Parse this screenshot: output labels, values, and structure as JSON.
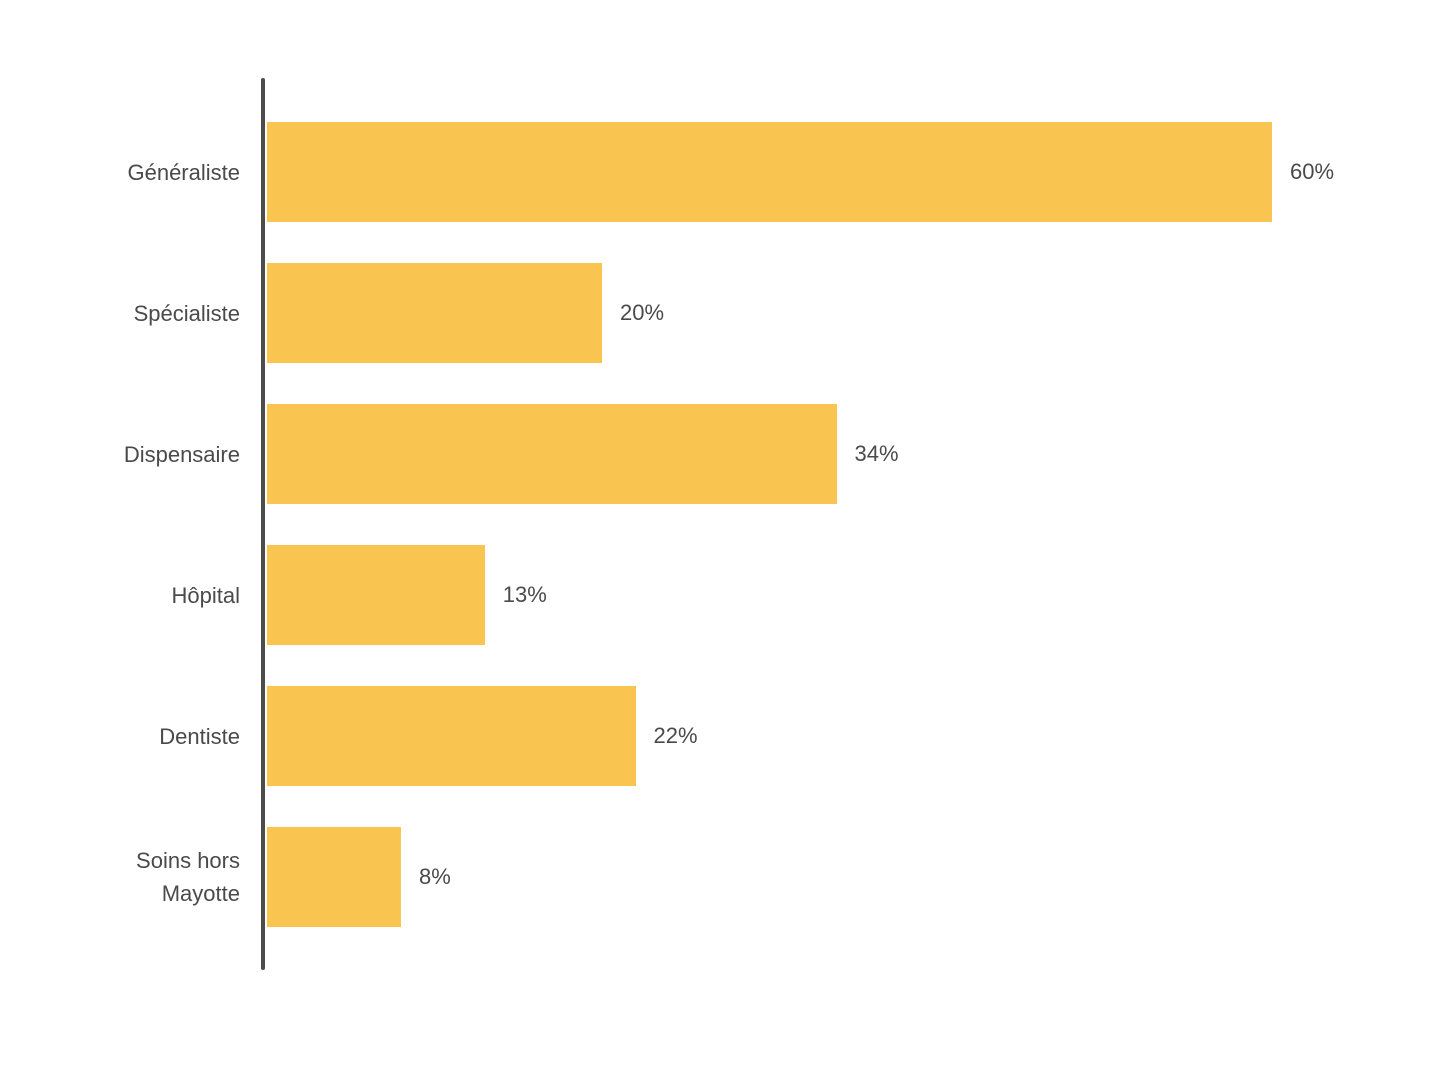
{
  "chart_data": {
    "type": "bar",
    "orientation": "horizontal",
    "title": "",
    "xlabel": "",
    "ylabel": "",
    "grid": false,
    "legend": false,
    "xlim": [
      0,
      60
    ],
    "categories": [
      "Généraliste",
      "Spécialiste",
      "Dispensaire",
      "Hôpital",
      "Dentiste",
      "Soins hors Mayotte"
    ],
    "values": [
      60,
      20,
      34,
      13,
      22,
      8
    ],
    "value_labels": [
      "60%",
      "20%",
      "34%",
      "13%",
      "22%",
      "8%"
    ],
    "bar_color": "#fac451",
    "text_color": "#4a4a4a",
    "axis_color": "#4d4d4d"
  }
}
